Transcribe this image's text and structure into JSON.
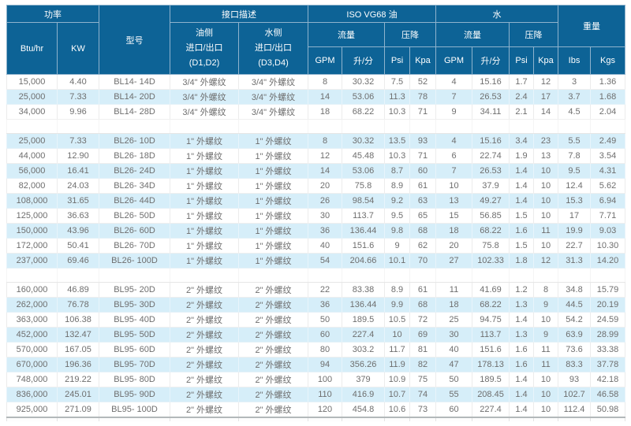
{
  "table": {
    "header": {
      "power_group": "功率",
      "btu": "Btu/hr",
      "kw": "KW",
      "model": "型号",
      "interface_group": "接口描述",
      "oil_side": "油侧\n进口/出口\n(D1,D2)",
      "water_side": "水侧\n进口/出口\n(D3,D4)",
      "iso_oil_group": "ISO VG68 油",
      "water_group": "水",
      "flow": "流量",
      "pressure_drop": "压降",
      "gpm": "GPM",
      "lpm": "升/分",
      "psi": "Psi",
      "kpa": "Kpa",
      "weight_group": "重量",
      "lbs": "Ibs",
      "kgs": "Kgs"
    },
    "groups": [
      {
        "series": "BL14",
        "rows": [
          [
            "15,000",
            "4.40",
            "BL14- 14D",
            "3/4\" 外螺纹",
            "3/4\" 外螺纹",
            "8",
            "30.32",
            "7.5",
            "52",
            "4",
            "15.16",
            "1.7",
            "12",
            "3",
            "1.36"
          ],
          [
            "25,000",
            "7.33",
            "BL14- 20D",
            "3/4\" 外螺纹",
            "3/4\" 外螺纹",
            "14",
            "53.06",
            "11.3",
            "78",
            "7",
            "26.53",
            "2.4",
            "17",
            "3.7",
            "1.68"
          ],
          [
            "34,000",
            "9.96",
            "BL14- 28D",
            "3/4\" 外螺纹",
            "3/4\" 外螺纹",
            "18",
            "68.22",
            "10.3",
            "71",
            "9",
            "34.11",
            "2.1",
            "14",
            "4.5",
            "2.04"
          ]
        ]
      },
      {
        "series": "BL26",
        "rows": [
          [
            "25,000",
            "7.33",
            "BL26- 10D",
            "1\" 外螺纹",
            "1\" 外螺纹",
            "8",
            "30.32",
            "13.5",
            "93",
            "4",
            "15.16",
            "3.4",
            "23",
            "5.5",
            "2.49"
          ],
          [
            "44,000",
            "12.90",
            "BL26- 18D",
            "1\" 外螺纹",
            "1\" 外螺纹",
            "12",
            "45.48",
            "10.3",
            "71",
            "6",
            "22.74",
            "1.9",
            "13",
            "7.8",
            "3.54"
          ],
          [
            "56,000",
            "16.41",
            "BL26- 24D",
            "1\" 外螺纹",
            "1\" 外螺纹",
            "14",
            "53.06",
            "8.7",
            "60",
            "7",
            "26.53",
            "1.4",
            "10",
            "9.5",
            "4.31"
          ],
          [
            "82,000",
            "24.03",
            "BL26- 34D",
            "1\" 外螺纹",
            "1\" 外螺纹",
            "20",
            "75.8",
            "8.9",
            "61",
            "10",
            "37.9",
            "1.4",
            "10",
            "12.4",
            "5.62"
          ],
          [
            "108,000",
            "31.65",
            "BL26- 44D",
            "1\" 外螺纹",
            "1\" 外螺纹",
            "26",
            "98.54",
            "9.2",
            "63",
            "13",
            "49.27",
            "1.4",
            "10",
            "15.3",
            "6.94"
          ],
          [
            "125,000",
            "36.63",
            "BL26- 50D",
            "1\" 外螺纹",
            "1\" 外螺纹",
            "30",
            "113.7",
            "9.5",
            "65",
            "15",
            "56.85",
            "1.5",
            "10",
            "17",
            "7.71"
          ],
          [
            "150,000",
            "43.96",
            "BL26- 60D",
            "1\" 外螺纹",
            "1\" 外螺纹",
            "36",
            "136.44",
            "9.8",
            "68",
            "18",
            "68.22",
            "1.6",
            "11",
            "19.9",
            "9.03"
          ],
          [
            "172,000",
            "50.41",
            "BL26- 70D",
            "1\" 外螺纹",
            "1\" 外螺纹",
            "40",
            "151.6",
            "9",
            "62",
            "20",
            "75.8",
            "1.5",
            "10",
            "22.7",
            "10.30"
          ],
          [
            "237,000",
            "69.46",
            "BL26- 100D",
            "1\" 外螺纹",
            "1\" 外螺纹",
            "54",
            "204.66",
            "10.1",
            "70",
            "27",
            "102.33",
            "1.8",
            "12",
            "31.3",
            "14.20"
          ]
        ]
      },
      {
        "series": "BL95",
        "rows": [
          [
            "160,000",
            "46.89",
            "BL95- 20D",
            "2\" 外螺纹",
            "2\" 外螺纹",
            "22",
            "83.38",
            "8.9",
            "61",
            "11",
            "41.69",
            "1.2",
            "8",
            "34.8",
            "15.79"
          ],
          [
            "262,000",
            "76.78",
            "BL95- 30D",
            "2\" 外螺纹",
            "2\" 外螺纹",
            "36",
            "136.44",
            "9.9",
            "68",
            "18",
            "68.22",
            "1.3",
            "9",
            "44.5",
            "20.19"
          ],
          [
            "363,000",
            "106.38",
            "BL95- 40D",
            "2\" 外螺纹",
            "2\" 外螺纹",
            "50",
            "189.5",
            "10.5",
            "72",
            "25",
            "94.75",
            "1.4",
            "10",
            "54.2",
            "24.59"
          ],
          [
            "452,000",
            "132.47",
            "BL95- 50D",
            "2\" 外螺纹",
            "2\" 外螺纹",
            "60",
            "227.4",
            "10",
            "69",
            "30",
            "113.7",
            "1.3",
            "9",
            "63.9",
            "28.99"
          ],
          [
            "570,000",
            "167.05",
            "BL95- 60D",
            "2\" 外螺纹",
            "2\" 外螺纹",
            "80",
            "303.2",
            "11.7",
            "81",
            "40",
            "151.6",
            "1.6",
            "11",
            "73.6",
            "33.38"
          ],
          [
            "670,000",
            "196.36",
            "BL95- 70D",
            "2\" 外螺纹",
            "2\" 外螺纹",
            "94",
            "356.26",
            "11.9",
            "82",
            "47",
            "178.13",
            "1.6",
            "11",
            "83.3",
            "37.78"
          ],
          [
            "748,000",
            "219.22",
            "BL95- 80D",
            "2\" 外螺纹",
            "2\" 外螺纹",
            "100",
            "379",
            "10.9",
            "75",
            "50",
            "189.5",
            "1.4",
            "10",
            "93",
            "42.18"
          ],
          [
            "836,000",
            "245.01",
            "BL95- 90D",
            "2\" 外螺纹",
            "2\" 外螺纹",
            "110",
            "416.9",
            "10.7",
            "74",
            "55",
            "208.45",
            "1.4",
            "10",
            "102.7",
            "46.58"
          ],
          [
            "925,000",
            "271.09",
            "BL95- 100D",
            "2\" 外螺纹",
            "2\" 外螺纹",
            "120",
            "454.8",
            "10.6",
            "73",
            "60",
            "227.4",
            "1.4",
            "10",
            "112.4",
            "50.98"
          ]
        ]
      }
    ]
  },
  "colors": {
    "header_bg": "#0d6396",
    "header_text": "#ffffff",
    "zebra_blue": "#d6eef9",
    "row_text": "#6e6e6e",
    "bottom_border": "#b3b8ba"
  }
}
